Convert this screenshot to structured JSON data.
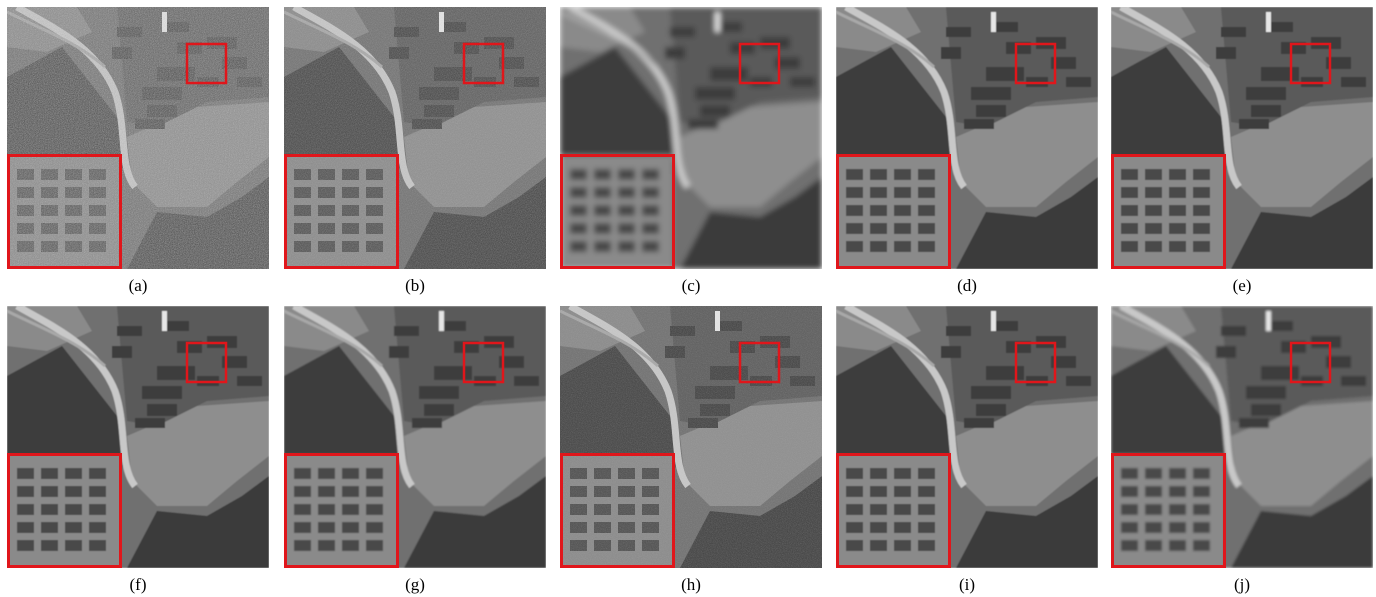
{
  "figure": {
    "panels": [
      {
        "id": "a",
        "caption": "(a)",
        "variant": "noisy"
      },
      {
        "id": "b",
        "caption": "(b)",
        "variant": "light-noise"
      },
      {
        "id": "c",
        "caption": "(c)",
        "variant": "over-smoothed"
      },
      {
        "id": "d",
        "caption": "(d)",
        "variant": "clean"
      },
      {
        "id": "e",
        "caption": "(e)",
        "variant": "clean"
      },
      {
        "id": "f",
        "caption": "(f)",
        "variant": "clean"
      },
      {
        "id": "g",
        "caption": "(g)",
        "variant": "clean-soft"
      },
      {
        "id": "h",
        "caption": "(h)",
        "variant": "sharp"
      },
      {
        "id": "i",
        "caption": "(i)",
        "variant": "clean"
      },
      {
        "id": "j",
        "caption": "(j)",
        "variant": "smooth"
      }
    ],
    "highlight_color": "#e0161b"
  }
}
